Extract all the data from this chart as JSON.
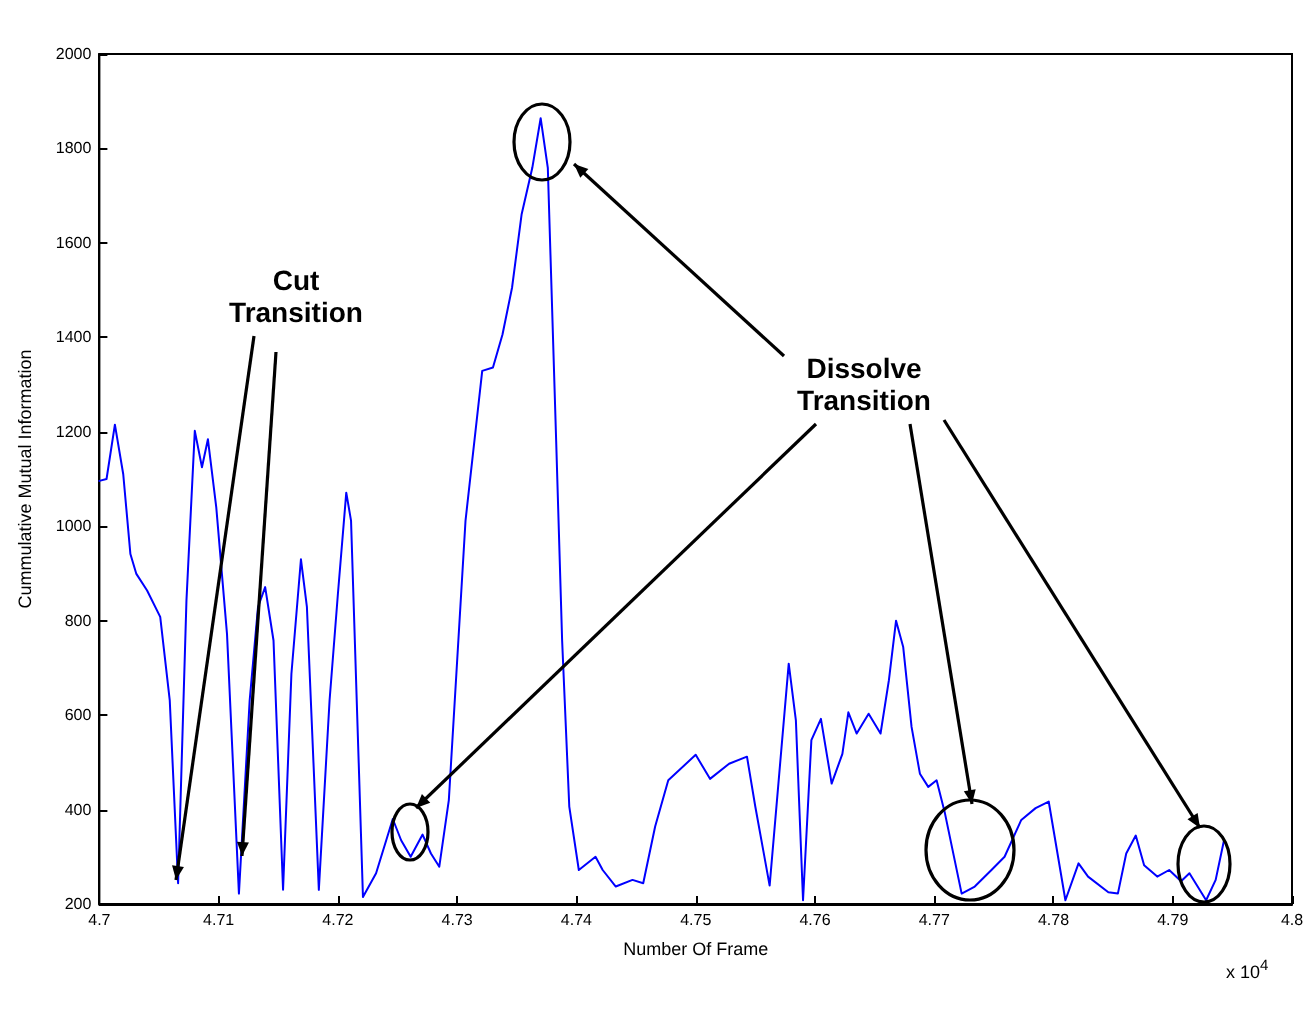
{
  "chart_data": {
    "type": "line",
    "xlabel": "Number Of Frame",
    "ylabel": "Cummulative Mutual Information",
    "annotations": [
      "Cut Transition",
      "Dissolve Transition",
      "x 10$^{4}$"
    ],
    "xlim": [
      4.7,
      4.8
    ],
    "xticks": [
      4.7,
      4.71,
      4.72,
      4.73,
      4.74,
      4.75,
      4.76,
      4.77,
      4.78,
      4.79,
      4.8
    ],
    "ylim": [
      200,
      2000
    ],
    "yticks": [
      200,
      400,
      600,
      800,
      1000,
      1200,
      1400,
      1600,
      1800,
      2000
    ],
    "grid": false,
    "marker": "none",
    "line_style": "solid",
    "series": [
      {
        "color": "#0000ff",
        "x": [
          4.7,
          4.7006,
          4.7013,
          4.702,
          4.7026,
          4.7031,
          4.704,
          4.7051,
          4.7059,
          4.7066,
          4.7073,
          4.708,
          4.7086,
          4.7091,
          4.7098,
          4.7107,
          4.7117,
          4.7126,
          4.7133,
          4.7139,
          4.7146,
          4.7154,
          4.7161,
          4.7169,
          4.7174,
          4.7184,
          4.7193,
          4.72,
          4.7207,
          4.7211,
          4.7221,
          4.7232,
          4.7246,
          4.7253,
          4.7261,
          4.7271,
          4.7278,
          4.7285,
          4.7293,
          4.7307,
          4.7321,
          4.733,
          4.7338,
          4.7346,
          4.7354,
          4.7363,
          4.737,
          4.7376,
          4.7383,
          4.7388,
          4.7394,
          4.7402,
          4.7416,
          4.7422,
          4.7433,
          4.7447,
          4.7456,
          4.7466,
          4.7477,
          4.75,
          4.7512,
          4.7528,
          4.7543,
          4.755,
          4.7562,
          4.7578,
          4.7584,
          4.759,
          4.7597,
          4.7605,
          4.7614,
          4.7623,
          4.7628,
          4.7635,
          4.7645,
          4.7655,
          4.7662,
          4.7668,
          4.7674,
          4.7681,
          4.7688,
          4.7695,
          4.7702,
          4.7709,
          4.7723,
          4.7734,
          4.7748,
          4.7759,
          4.7773,
          4.7785,
          4.7796,
          4.781,
          4.7821,
          4.7829,
          4.7846,
          4.7854,
          4.7861,
          4.7869,
          4.7876,
          4.7887,
          4.7897,
          4.7907,
          4.7914,
          4.7928,
          4.7936,
          4.7943
        ],
        "values": [
          1096,
          1100,
          1215,
          1110,
          941,
          899,
          864,
          808,
          631,
          244,
          843,
          1202,
          1125,
          1184,
          1040,
          772,
          222,
          631,
          829,
          871,
          758,
          230,
          687,
          930,
          829,
          230,
          631,
          857,
          1071,
          1012,
          215,
          265,
          380,
          335,
          300,
          347,
          307,
          279,
          420,
          1012,
          1329,
          1336,
          1406,
          1505,
          1660,
          1759,
          1864,
          1759,
          1181,
          758,
          406,
          272,
          300,
          272,
          237,
          251,
          244,
          364,
          462,
          516,
          465,
          497,
          512,
          406,
          239,
          709,
          589,
          208,
          547,
          592,
          455,
          518,
          606,
          561,
          603,
          561,
          674,
          800,
          744,
          575,
          476,
          448,
          462,
          392,
          222,
          237,
          272,
          300,
          378,
          403,
          417,
          208,
          286,
          258,
          225,
          222,
          307,
          345,
          282,
          258,
          272,
          248,
          265,
          208,
          251,
          335
        ]
      }
    ]
  }
}
